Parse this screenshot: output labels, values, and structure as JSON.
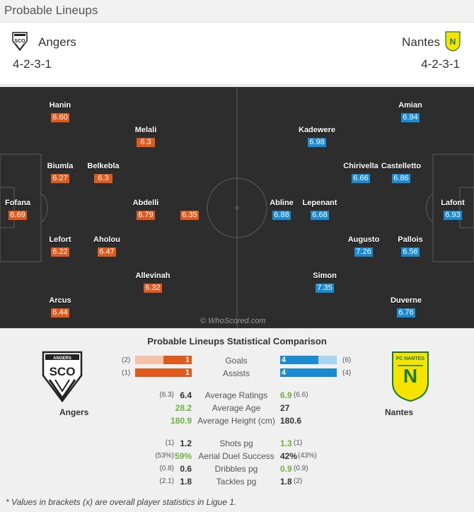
{
  "header": {
    "title": "Probable Lineups"
  },
  "home": {
    "name": "Angers",
    "formation": "4-2-3-1",
    "color": "#e05a1d"
  },
  "away": {
    "name": "Nantes",
    "formation": "4-2-3-1",
    "color": "#1a8bd3"
  },
  "pitch": {
    "watermark": "© WhoScored.com",
    "home_players": [
      {
        "name": "Hanin",
        "rating": "6.60"
      },
      {
        "name": "Melali",
        "rating": "6.3"
      },
      {
        "name": "Biumla",
        "rating": "6.27"
      },
      {
        "name": "Belkebla",
        "rating": "6.3"
      },
      {
        "name": "Fofana",
        "rating": "6.69"
      },
      {
        "name": "Abdelli",
        "rating": "6.79"
      },
      {
        "name": "",
        "rating": "6.35"
      },
      {
        "name": "Lefort",
        "rating": "6.22"
      },
      {
        "name": "Aholou",
        "rating": "6.47"
      },
      {
        "name": "Allevinah",
        "rating": "6.32"
      },
      {
        "name": "Arcus",
        "rating": "6.44"
      }
    ],
    "away_players": [
      {
        "name": "Amian",
        "rating": "6.94"
      },
      {
        "name": "Kadewere",
        "rating": "6.98"
      },
      {
        "name": "Chirivella",
        "rating": "6.66"
      },
      {
        "name": "Castelletto",
        "rating": "6.86"
      },
      {
        "name": "Abline",
        "rating": "6.88"
      },
      {
        "name": "Lepenant",
        "rating": "6.68"
      },
      {
        "name": "Lafont",
        "rating": "6.93"
      },
      {
        "name": "Augusto",
        "rating": "7.26"
      },
      {
        "name": "Pallois",
        "rating": "6.56"
      },
      {
        "name": "Simon",
        "rating": "7.35"
      },
      {
        "name": "Duverne",
        "rating": "6.76"
      }
    ]
  },
  "comparison": {
    "title": "Probable Lineups Statistical Comparison",
    "goals": {
      "label": "Goals",
      "home": "1",
      "home_overall": "(2)",
      "away": "4",
      "away_overall": "(6)",
      "home_fraction": 0.5,
      "away_fraction": 0.67
    },
    "assists": {
      "label": "Assists",
      "home": "1",
      "home_overall": "(1)",
      "away": "4",
      "away_overall": "(4)",
      "home_fraction": 1.0,
      "away_fraction": 1.0
    },
    "rows": [
      {
        "label": "Average Ratings",
        "home_overall": "(6.3)",
        "home": "6.4",
        "away": "6.9",
        "away_overall": "(6.6)"
      },
      {
        "label": "Average Age",
        "home_overall": "",
        "home": "28.2",
        "away": "27",
        "away_overall": ""
      },
      {
        "label": "Average Height (cm)",
        "home_overall": "",
        "home": "180.9",
        "away": "180.6",
        "away_overall": ""
      },
      {
        "label": "Shots pg",
        "home_overall": "(1)",
        "home": "1.2",
        "away": "1.3",
        "away_overall": "(1)"
      },
      {
        "label": "Aerial Duel Success",
        "home_overall": "(53%)",
        "home": "59%",
        "away": "42%",
        "away_overall": "(43%)"
      },
      {
        "label": "Dribbles pg",
        "home_overall": "(0.8)",
        "home": "0.6",
        "away": "0.9",
        "away_overall": "(0.9)"
      },
      {
        "label": "Tackles pg",
        "home_overall": "(2.1)",
        "home": "1.8",
        "away": "1.8",
        "away_overall": "(2)"
      }
    ],
    "footnote": "* Values in brackets (x) are overall player statistics in Ligue 1."
  }
}
